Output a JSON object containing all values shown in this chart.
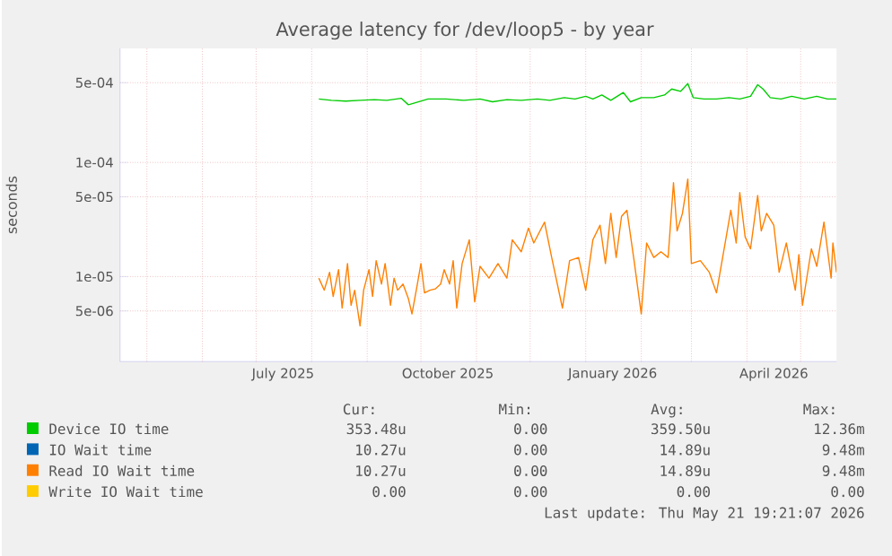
{
  "chart_data": {
    "type": "line",
    "title": "Average latency for /dev/loop5 - by year",
    "ylabel": "seconds",
    "log": "y",
    "grid": true,
    "legend": "bottom",
    "xlim": [
      "2025-04-16",
      "2026-05-21"
    ],
    "xticks": [
      {
        "value": "2025-05-01",
        "label": null
      },
      {
        "value": "2025-06-01",
        "label": null
      },
      {
        "value": "2025-07-01",
        "label": null
      },
      {
        "value": "2025-07-16",
        "label": "July 2025"
      },
      {
        "value": "2025-08-01",
        "label": null
      },
      {
        "value": "2025-09-01",
        "label": null
      },
      {
        "value": "2025-10-01",
        "label": null
      },
      {
        "value": "2025-10-16",
        "label": "October 2025"
      },
      {
        "value": "2025-11-01",
        "label": null
      },
      {
        "value": "2025-12-01",
        "label": null
      },
      {
        "value": "2026-01-01",
        "label": null
      },
      {
        "value": "2026-01-16",
        "label": "January 2026"
      },
      {
        "value": "2026-02-01",
        "label": null
      },
      {
        "value": "2026-03-01",
        "label": null
      },
      {
        "value": "2026-04-01",
        "label": null
      },
      {
        "value": "2026-04-16",
        "label": "April 2026"
      },
      {
        "value": "2026-05-01",
        "label": null
      }
    ],
    "ylim": [
      1.8e-06,
      0.001
    ],
    "yticks": [
      {
        "value": 5e-06,
        "label": "5e-06"
      },
      {
        "value": 1e-05,
        "label": "1e-05"
      },
      {
        "value": 5e-05,
        "label": "5e-05"
      },
      {
        "value": 0.0001,
        "label": "1e-04"
      },
      {
        "value": 0.0005,
        "label": "5e-04"
      }
    ],
    "series": [
      {
        "name": "Device IO time",
        "color": "#00cc00",
        "x": [
          "2025-08-05",
          "2025-08-12",
          "2025-08-20",
          "2025-08-28",
          "2025-09-05",
          "2025-09-12",
          "2025-09-20",
          "2025-09-24",
          "2025-10-05",
          "2025-10-15",
          "2025-10-25",
          "2025-11-03",
          "2025-11-10",
          "2025-11-18",
          "2025-11-26",
          "2025-12-05",
          "2025-12-12",
          "2025-12-20",
          "2025-12-26",
          "2026-01-01",
          "2026-01-05",
          "2026-01-10",
          "2026-01-15",
          "2026-01-22",
          "2026-01-26",
          "2026-02-01",
          "2026-02-08",
          "2026-02-14",
          "2026-02-18",
          "2026-02-23",
          "2026-02-27",
          "2026-03-02",
          "2026-03-08",
          "2026-03-15",
          "2026-03-22",
          "2026-03-28",
          "2026-04-03",
          "2026-04-07",
          "2026-04-10",
          "2026-04-14",
          "2026-04-20",
          "2026-04-26",
          "2026-05-03",
          "2026-05-10",
          "2026-05-16",
          "2026-05-21"
        ],
        "values": [
          0.00036,
          0.00035,
          0.000345,
          0.00035,
          0.000355,
          0.00035,
          0.000365,
          0.00032,
          0.00036,
          0.00036,
          0.00035,
          0.00036,
          0.00034,
          0.000355,
          0.00035,
          0.00036,
          0.00035,
          0.00037,
          0.00036,
          0.00038,
          0.00036,
          0.00039,
          0.00035,
          0.00041,
          0.00034,
          0.00037,
          0.00037,
          0.00039,
          0.00044,
          0.00042,
          0.00049,
          0.00037,
          0.00036,
          0.00036,
          0.00037,
          0.00036,
          0.00038,
          0.00048,
          0.00044,
          0.00037,
          0.00036,
          0.00038,
          0.00036,
          0.00038,
          0.00036,
          0.00036
        ]
      },
      {
        "name": "IO Wait time",
        "color": "#0066b3"
      },
      {
        "name": "Read IO Wait time",
        "color": "#ff8000",
        "x": [
          "2025-08-05",
          "2025-08-08",
          "2025-08-11",
          "2025-08-13",
          "2025-08-16",
          "2025-08-18",
          "2025-08-21",
          "2025-08-23",
          "2025-08-25",
          "2025-08-28",
          "2025-08-30",
          "2025-09-02",
          "2025-09-04",
          "2025-09-06",
          "2025-09-09",
          "2025-09-11",
          "2025-09-14",
          "2025-09-16",
          "2025-09-18",
          "2025-09-21",
          "2025-09-24",
          "2025-09-26",
          "2025-09-29",
          "2025-10-01",
          "2025-10-03",
          "2025-10-06",
          "2025-10-09",
          "2025-10-12",
          "2025-10-14",
          "2025-10-17",
          "2025-10-19",
          "2025-10-21",
          "2025-10-24",
          "2025-10-28",
          "2025-10-31",
          "2025-11-03",
          "2025-11-08",
          "2025-11-13",
          "2025-11-18",
          "2025-11-21",
          "2025-11-26",
          "2025-11-30",
          "2025-12-03",
          "2025-12-09",
          "2025-12-13",
          "2025-12-19",
          "2025-12-23",
          "2025-12-28",
          "2026-01-01",
          "2026-01-05",
          "2026-01-09",
          "2026-01-12",
          "2026-01-15",
          "2026-01-18",
          "2026-01-21",
          "2026-01-24",
          "2026-01-28",
          "2026-02-01",
          "2026-02-04",
          "2026-02-08",
          "2026-02-12",
          "2026-02-16",
          "2026-02-19",
          "2026-02-21",
          "2026-02-24",
          "2026-02-27",
          "2026-03-01",
          "2026-03-06",
          "2026-03-11",
          "2026-03-15",
          "2026-03-19",
          "2026-03-23",
          "2026-03-26",
          "2026-03-28",
          "2026-03-31",
          "2026-04-03",
          "2026-04-07",
          "2026-04-09",
          "2026-04-12",
          "2026-04-16",
          "2026-04-19",
          "2026-04-23",
          "2026-04-28",
          "2026-04-30",
          "2026-05-02",
          "2026-05-07",
          "2026-05-10",
          "2026-05-14",
          "2026-05-18",
          "2026-05-19",
          "2026-05-21"
        ],
        "values": [
          9.7e-06,
          7.6e-06,
          1.09e-05,
          6.7e-06,
          1.15e-05,
          5.3e-06,
          1.3e-05,
          5.6e-06,
          7.6e-06,
          3.7e-06,
          7.6e-06,
          1.15e-05,
          6.7e-06,
          1.38e-05,
          8.6e-06,
          1.3e-05,
          5.6e-06,
          9.7e-06,
          7.6e-06,
          8.6e-06,
          6.4e-06,
          4.7e-06,
          8.6e-06,
          1.3e-05,
          7.2e-06,
          7.6e-06,
          7.8e-06,
          8.6e-06,
          1.15e-05,
          8.6e-06,
          1.38e-05,
          5.3e-06,
          1.3e-05,
          2.1e-05,
          6e-06,
          1.23e-05,
          9.7e-06,
          1.3e-05,
          9.7e-06,
          2.1e-05,
          1.65e-05,
          2.66e-05,
          1.97e-05,
          3e-05,
          1.47e-05,
          5.3e-06,
          1.38e-05,
          1.47e-05,
          7.6e-06,
          2.1e-05,
          2.82e-05,
          1.3e-05,
          3.58e-05,
          1.47e-05,
          3.37e-05,
          3.81e-05,
          1.38e-05,
          4.7e-06,
          1.97e-05,
          1.47e-05,
          1.65e-05,
          1.47e-05,
          6.65e-05,
          2.51e-05,
          3.58e-05,
          7.15e-05,
          1.3e-05,
          1.38e-05,
          1.09e-05,
          7.2e-06,
          1.65e-05,
          3.81e-05,
          1.97e-05,
          5.45e-05,
          2.23e-05,
          1.75e-05,
          5.13e-05,
          2.51e-05,
          3.58e-05,
          2.82e-05,
          1.09e-05,
          1.97e-05,
          7.6e-06,
          1.56e-05,
          5.6e-06,
          1.75e-05,
          1.23e-05,
          3e-05,
          9.7e-06,
          1.97e-05,
          1.09e-05
        ]
      },
      {
        "name": "Write IO Wait time",
        "color": "#ffcc00"
      }
    ],
    "annotations": [
      "Cur:",
      "Min:",
      "Avg:",
      "Max:",
      "353.48u",
      "0.00",
      "359.50u",
      "12.36m",
      "10.27u",
      "0.00",
      "14.89u",
      "9.48m",
      "10.27u",
      "0.00",
      "14.89u",
      "9.48m",
      "0.00",
      "0.00",
      "0.00",
      "0.00",
      "Last update: Thu May 21 19:21:07 2026"
    ]
  }
}
